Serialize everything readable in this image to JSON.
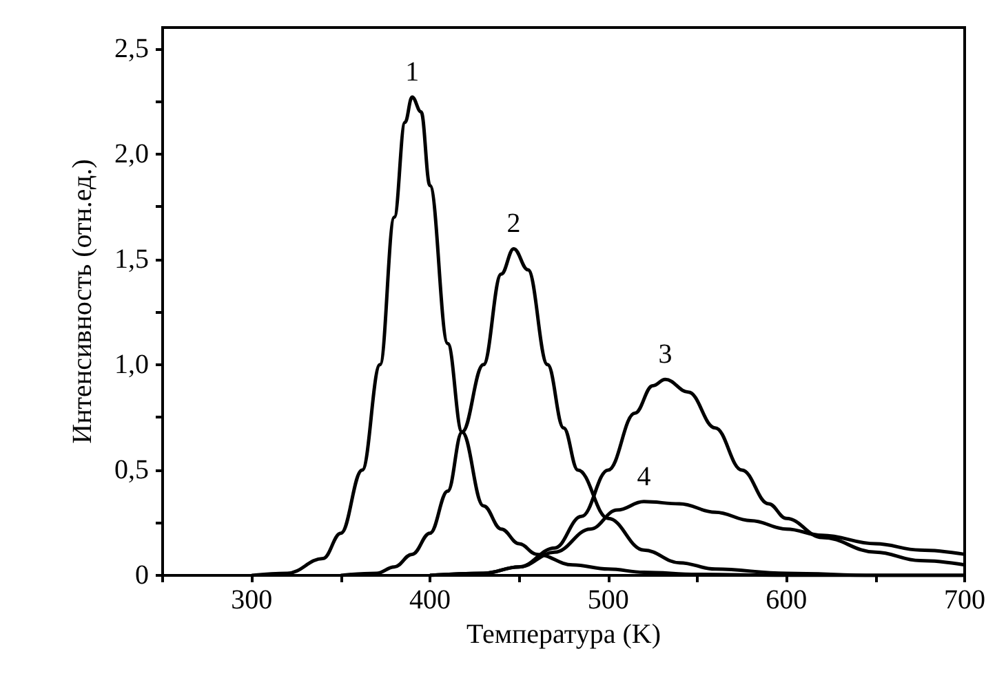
{
  "chart_data": {
    "type": "line",
    "xlabel": "Температура (K)",
    "ylabel": "Интенсивность (отн.ед.)",
    "xlim": [
      250,
      700
    ],
    "xticks": [
      {
        "value": 250,
        "label": null
      },
      300,
      {
        "value": 350,
        "label": null
      },
      400,
      {
        "value": 450,
        "label": null
      },
      500,
      {
        "value": 550,
        "label": null
      },
      600,
      {
        "value": 650,
        "label": null
      },
      700
    ],
    "ylim": [
      0,
      2.6
    ],
    "yticks": [
      0,
      {
        "value": 0.25,
        "label": null
      },
      {
        "value": 0.5,
        "label": "0,5"
      },
      {
        "value": 0.75,
        "label": null
      },
      {
        "value": 1,
        "label": "1,0"
      },
      {
        "value": 1.25,
        "label": null
      },
      {
        "value": 1.5,
        "label": "1,5"
      },
      {
        "value": 1.75,
        "label": null
      },
      {
        "value": 2,
        "label": "2,0"
      },
      {
        "value": 2.25,
        "label": null
      },
      {
        "value": 2.5,
        "label": "2,5"
      }
    ],
    "grid": false,
    "legend": false,
    "marker": "none",
    "line_style": "solid",
    "series": [
      {
        "name": "1",
        "color": "#000000",
        "x": [
          300,
          320,
          340,
          350,
          362,
          372,
          380,
          386,
          390,
          395,
          400,
          410,
          418,
          430,
          440,
          450,
          460,
          480,
          500,
          520,
          550,
          600,
          700
        ],
        "values": [
          0,
          0.01,
          0.08,
          0.2,
          0.5,
          1.0,
          1.7,
          2.15,
          2.27,
          2.2,
          1.85,
          1.1,
          0.68,
          0.33,
          0.22,
          0.15,
          0.1,
          0.05,
          0.03,
          0.015,
          0.005,
          0,
          0
        ]
      },
      {
        "name": "2",
        "color": "#000000",
        "x": [
          350,
          370,
          380,
          390,
          400,
          410,
          418,
          430,
          440,
          447,
          455,
          466,
          475,
          483,
          500,
          520,
          540,
          560,
          600,
          650,
          700
        ],
        "values": [
          0,
          0.01,
          0.04,
          0.1,
          0.2,
          0.4,
          0.68,
          1.0,
          1.43,
          1.55,
          1.45,
          1.0,
          0.7,
          0.5,
          0.27,
          0.12,
          0.06,
          0.03,
          0.01,
          0,
          0
        ]
      },
      {
        "name": "3",
        "color": "#000000",
        "x": [
          400,
          430,
          450,
          470,
          485,
          500,
          515,
          525,
          532,
          545,
          560,
          575,
          590,
          600,
          620,
          650,
          675,
          700
        ],
        "values": [
          0,
          0.01,
          0.04,
          0.13,
          0.28,
          0.5,
          0.77,
          0.9,
          0.93,
          0.87,
          0.7,
          0.5,
          0.34,
          0.27,
          0.18,
          0.11,
          0.07,
          0.05
        ]
      },
      {
        "name": "4",
        "color": "#000000",
        "x": [
          400,
          430,
          450,
          470,
          490,
          505,
          520,
          540,
          560,
          580,
          600,
          620,
          650,
          675,
          700
        ],
        "values": [
          0,
          0.01,
          0.04,
          0.11,
          0.22,
          0.31,
          0.35,
          0.34,
          0.3,
          0.26,
          0.22,
          0.19,
          0.15,
          0.12,
          0.1
        ]
      }
    ]
  }
}
